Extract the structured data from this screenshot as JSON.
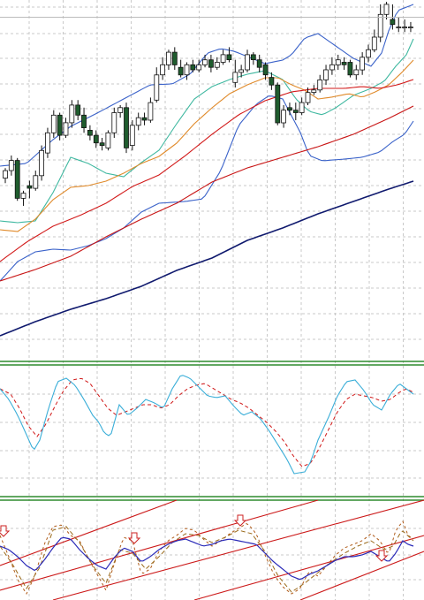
{
  "colors": {
    "background": "#ffffff",
    "grid": "#c9c9c9",
    "separator": "#2e8b2e",
    "candle_up_fill": "#ffffff",
    "candle_down_fill": "#1f5c2e",
    "candle_outline": "#111111",
    "bollinger": "#3a62c9",
    "ma_fast": "#3fb8a0",
    "ma_mid": "#e08a2a",
    "ma_red_1": "#d21a1a",
    "ma_red_2": "#c81414",
    "ma_long": "#101a6e",
    "stoch_main": "#3aaed8",
    "stoch_signal": "#d01818",
    "osc_main": "#2a2ab8",
    "osc_dash_1": "#b05a18",
    "osc_dash_2": "#9a6a1a",
    "trendline": "#cc1a1a",
    "arrow": "#cc2222"
  },
  "chart_data": [
    {
      "type": "candlestick",
      "name": "price",
      "x": [
        1,
        2,
        3,
        4,
        5,
        6,
        7,
        8,
        9,
        10,
        11,
        12,
        13,
        14,
        15,
        16,
        17,
        18,
        19,
        20,
        21,
        22,
        23,
        24,
        25,
        26,
        27,
        28,
        29,
        30,
        31,
        32,
        33,
        34,
        35,
        36,
        37,
        38,
        39,
        40,
        41,
        42,
        43,
        44,
        45,
        46,
        47,
        48,
        49,
        50,
        51,
        52,
        53,
        54,
        55,
        56,
        57,
        58,
        59,
        60,
        61,
        62,
        63,
        64,
        65,
        66,
        67,
        68
      ],
      "open": [
        12.0,
        13.5,
        15.5,
        8.0,
        10.5,
        10.0,
        12.5,
        17.0,
        21.0,
        24.5,
        20.5,
        23.0,
        26.5,
        24.5,
        21.5,
        20.5,
        19.0,
        18.0,
        21.0,
        25.0,
        26.0,
        18.5,
        22.5,
        24.0,
        23.5,
        27.5,
        32.5,
        34.5,
        37.0,
        34.0,
        32.5,
        34.5,
        33.5,
        34.5,
        35.5,
        34.0,
        35.0,
        36.5,
        31.0,
        33.0,
        33.5,
        36.5,
        35.5,
        34.5,
        32.0,
        30.5,
        23.0,
        26.0,
        25.5,
        25.0,
        27.0,
        29.0,
        29.5,
        31.5,
        33.5,
        34.5,
        35.0,
        35.0,
        32.5,
        33.5,
        36.0,
        37.5,
        40.0,
        44.5,
        43.5,
        42.0,
        42.0,
        42.0
      ],
      "close": [
        13.5,
        15.5,
        8.0,
        9.0,
        10.0,
        12.5,
        17.5,
        21.0,
        24.5,
        20.5,
        23.0,
        26.5,
        24.5,
        22.0,
        20.5,
        19.0,
        18.5,
        21.0,
        25.0,
        26.0,
        18.0,
        22.5,
        24.0,
        23.5,
        27.0,
        32.5,
        34.5,
        37.0,
        34.5,
        32.5,
        34.5,
        33.5,
        34.5,
        35.5,
        34.0,
        35.0,
        36.5,
        35.5,
        33.0,
        33.5,
        36.5,
        35.5,
        34.0,
        32.5,
        30.5,
        23.0,
        25.5,
        25.5,
        25.0,
        27.0,
        29.0,
        29.5,
        31.5,
        33.5,
        34.5,
        35.5,
        34.5,
        32.5,
        33.5,
        36.0,
        37.5,
        40.0,
        44.5,
        46.5,
        42.5,
        42.0,
        42.0,
        42.0
      ],
      "high": [
        14.0,
        16.5,
        16.0,
        9.5,
        11.5,
        13.5,
        18.5,
        22.0,
        25.5,
        25.0,
        24.0,
        27.5,
        27.5,
        26.0,
        22.5,
        21.5,
        20.0,
        21.5,
        26.0,
        26.5,
        27.0,
        23.5,
        25.0,
        25.0,
        28.0,
        34.0,
        36.0,
        37.5,
        38.0,
        35.5,
        35.0,
        35.5,
        35.5,
        36.5,
        36.5,
        36.0,
        37.5,
        38.0,
        35.5,
        34.5,
        37.5,
        37.0,
        36.5,
        35.0,
        33.0,
        31.0,
        26.5,
        27.0,
        27.0,
        28.0,
        30.0,
        30.5,
        32.5,
        34.5,
        36.0,
        36.5,
        36.0,
        35.5,
        34.5,
        37.0,
        38.5,
        41.5,
        46.5,
        47.0,
        46.5,
        44.0,
        43.5,
        43.0
      ],
      "low": [
        11.0,
        12.5,
        7.5,
        6.5,
        8.0,
        9.5,
        11.5,
        16.0,
        20.0,
        19.5,
        20.0,
        22.0,
        23.5,
        21.0,
        19.5,
        18.0,
        17.5,
        17.5,
        20.0,
        24.0,
        17.0,
        17.5,
        21.5,
        22.5,
        23.0,
        27.0,
        31.5,
        33.5,
        33.5,
        32.0,
        31.5,
        33.0,
        33.0,
        34.0,
        33.0,
        33.5,
        34.5,
        35.0,
        30.0,
        32.0,
        33.0,
        34.5,
        33.0,
        31.5,
        29.5,
        22.5,
        22.0,
        24.5,
        23.5,
        24.5,
        26.5,
        28.5,
        29.0,
        30.5,
        32.5,
        33.5,
        33.5,
        32.0,
        31.5,
        32.5,
        35.0,
        37.0,
        39.0,
        43.5,
        41.5,
        41.0,
        41.0,
        41.0
      ]
    },
    {
      "type": "line",
      "name": "price-overlays",
      "x": [
        1,
        68
      ],
      "series": [
        {
          "role": "bollinger-upper",
          "color_key": "bollinger"
        },
        {
          "role": "bollinger-lower",
          "color_key": "bollinger"
        },
        {
          "role": "ma-fast",
          "color_key": "ma_fast"
        },
        {
          "role": "ma-mid",
          "color_key": "ma_mid"
        },
        {
          "role": "ma-red-1",
          "color_key": "ma_red_1"
        },
        {
          "role": "ma-red-2",
          "color_key": "ma_red_2"
        },
        {
          "role": "ma-long",
          "color_key": "ma_long"
        }
      ]
    },
    {
      "type": "line",
      "name": "stochastic",
      "ylim": [
        0,
        100
      ],
      "series": [
        {
          "role": "main",
          "color_key": "stoch_main",
          "style": "solid"
        },
        {
          "role": "signal",
          "color_key": "stoch_signal",
          "style": "dashed"
        }
      ]
    },
    {
      "type": "line",
      "name": "oscillator",
      "series": [
        {
          "role": "main",
          "color_key": "osc_main",
          "style": "solid"
        },
        {
          "role": "dash-1",
          "color_key": "osc_dash_1",
          "style": "dashed"
        },
        {
          "role": "dash-2",
          "color_key": "osc_dash_2",
          "style": "dashed"
        }
      ],
      "arrows": 4,
      "trendlines": 5
    }
  ]
}
